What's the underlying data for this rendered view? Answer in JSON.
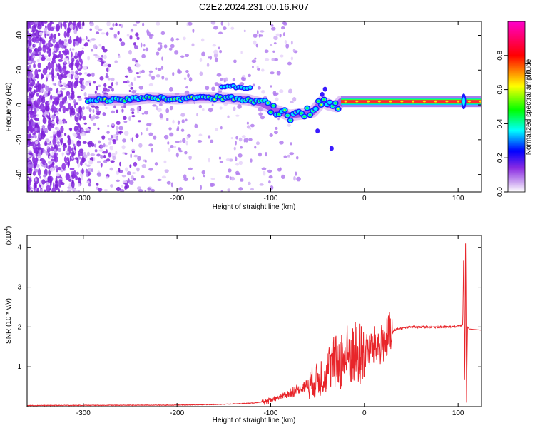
{
  "title": "C2E2.2024.231.00.16.R07",
  "chart_data": [
    {
      "type": "heatmap",
      "xlabel": "Height of straight line (km)",
      "ylabel": "Frequency (Hz)",
      "xlim": [
        -360,
        125
      ],
      "ylim": [
        -50,
        48
      ],
      "xticks": [
        -300,
        -200,
        -100,
        0,
        100
      ],
      "yticks": [
        -40,
        -20,
        0,
        20,
        40
      ],
      "colorbar": {
        "label": "Normalized spectral amplitude",
        "range": [
          0,
          1
        ],
        "ticks": [
          0.0,
          0.2,
          0.4,
          0.6,
          0.8
        ],
        "tick_labels": [
          "0.0",
          "0.2",
          "0.4",
          "0.6",
          "0.8"
        ],
        "colors": [
          "#ffffff",
          "#8a2be2",
          "#0000ff",
          "#00ffff",
          "#00ff00",
          "#ffff00",
          "#ff0000",
          "#ff00cc"
        ]
      },
      "ridge": [
        [
          -295,
          3
        ],
        [
          -270,
          3
        ],
        [
          -250,
          3
        ],
        [
          -230,
          4
        ],
        [
          -200,
          3.5
        ],
        [
          -175,
          4
        ],
        [
          -150,
          4
        ],
        [
          -125,
          3
        ],
        [
          -110,
          1
        ],
        [
          -95,
          -3
        ],
        [
          -80,
          -6
        ],
        [
          -65,
          -5
        ],
        [
          -55,
          -4
        ],
        [
          -45,
          2
        ],
        [
          -38,
          0
        ],
        [
          -30,
          -1
        ],
        [
          -25,
          2
        ],
        [
          0,
          2
        ],
        [
          50,
          2
        ],
        [
          100,
          2
        ],
        [
          125,
          2
        ]
      ],
      "noise_region": [
        -360,
        -200
      ]
    },
    {
      "type": "line",
      "xlabel": "Height of straight line (km)",
      "ylabel": "SNR (10 * v/v)",
      "y_multiplier": "(x10",
      "y_multiplier_exp": "4",
      "y_multiplier_close": ")",
      "xlim": [
        -360,
        125
      ],
      "ylim": [
        0,
        4.3
      ],
      "xticks": [
        -300,
        -200,
        -100,
        0,
        100
      ],
      "yticks": [
        1,
        2,
        3,
        4
      ],
      "series": [
        {
          "color": "#e8252a",
          "trend": [
            [
              -360,
              0.02
            ],
            [
              -200,
              0.03
            ],
            [
              -150,
              0.05
            ],
            [
              -120,
              0.08
            ],
            [
              -105,
              0.12
            ],
            [
              -95,
              0.2
            ],
            [
              -85,
              0.3
            ],
            [
              -75,
              0.4
            ],
            [
              -65,
              0.5
            ],
            [
              -55,
              0.65
            ],
            [
              -45,
              0.85
            ],
            [
              -35,
              1.1
            ],
            [
              -28,
              1.25
            ],
            [
              -20,
              1.35
            ],
            [
              -10,
              1.4
            ],
            [
              0,
              1.45
            ],
            [
              10,
              1.55
            ],
            [
              20,
              1.7
            ],
            [
              28,
              1.85
            ],
            [
              35,
              1.95
            ],
            [
              50,
              2.0
            ],
            [
              70,
              2.0
            ],
            [
              90,
              2.0
            ],
            [
              100,
              2.02
            ],
            [
              105,
              2.05
            ],
            [
              106,
              3.95
            ],
            [
              107,
              0.3
            ],
            [
              108,
              4.3
            ],
            [
              109,
              0.1
            ],
            [
              110,
              2.0
            ],
            [
              112,
              1.95
            ],
            [
              125,
              1.92
            ]
          ]
        }
      ]
    }
  ]
}
